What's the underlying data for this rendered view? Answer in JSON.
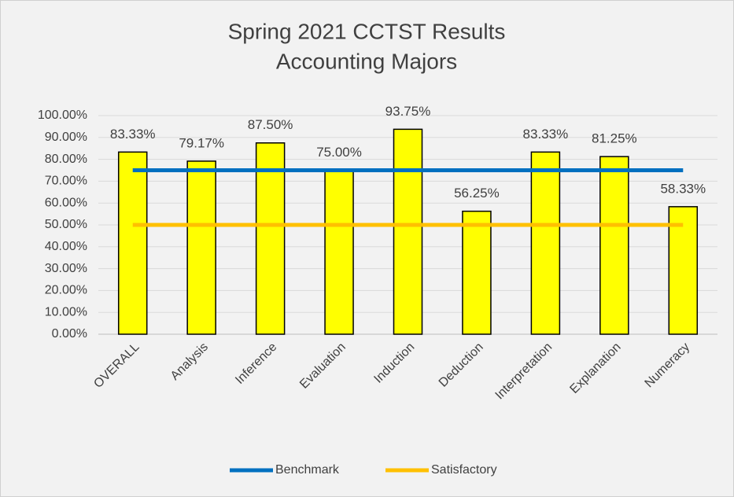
{
  "chart_data": {
    "type": "bar",
    "title": "Spring 2021 CCTST Results",
    "subtitle": "Accounting Majors",
    "categories": [
      "OVERALL",
      "Analysis",
      "Inference",
      "Evaluation",
      "Induction",
      "Deduction",
      "Interpretation",
      "Explanation",
      "Numeracy"
    ],
    "values": [
      83.33,
      79.17,
      87.5,
      75,
      93.75,
      56.25,
      83.33,
      81.25,
      58.33
    ],
    "value_labels": [
      "83.33%",
      "79.17%",
      "87.50%",
      "75.00%",
      "93.75%",
      "56.25%",
      "83.33%",
      "81.25%",
      "58.33%"
    ],
    "color": "#ffff00",
    "lines": [
      {
        "name": "Benchmark",
        "color": "#0070c0",
        "values": [
          75,
          75,
          75,
          75,
          75,
          75,
          75,
          75,
          75
        ]
      },
      {
        "name": "Satisfactory",
        "color": "#ffc000",
        "values": [
          50,
          50,
          50,
          50,
          50,
          50,
          50,
          50,
          50
        ]
      }
    ],
    "ylim": [
      0,
      100
    ],
    "yticks": [
      {
        "value": 0,
        "label": "0.00%"
      },
      {
        "value": 10,
        "label": "10.00%"
      },
      {
        "value": 20,
        "label": "20.00%"
      },
      {
        "value": 30,
        "label": "30.00%"
      },
      {
        "value": 40,
        "label": "40.00%"
      },
      {
        "value": 50,
        "label": "50.00%"
      },
      {
        "value": 60,
        "label": "60.00%"
      },
      {
        "value": 70,
        "label": "70.00%"
      },
      {
        "value": 80,
        "label": "80.00%"
      },
      {
        "value": 90,
        "label": "90.00%"
      },
      {
        "value": 100,
        "label": "100.00%"
      }
    ],
    "grid": true,
    "legend": "bottom"
  }
}
